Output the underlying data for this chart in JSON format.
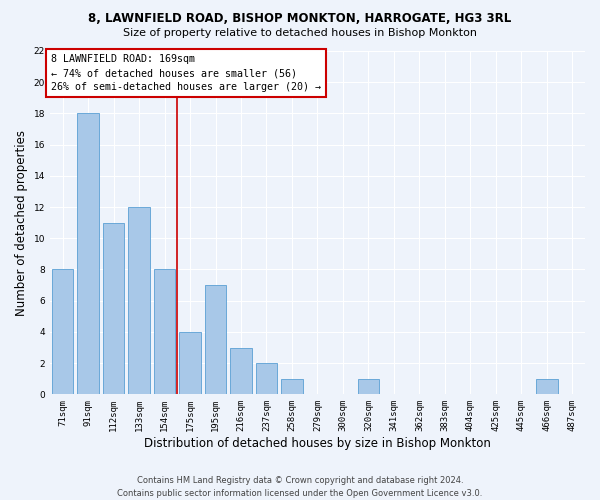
{
  "title1": "8, LAWNFIELD ROAD, BISHOP MONKTON, HARROGATE, HG3 3RL",
  "title2": "Size of property relative to detached houses in Bishop Monkton",
  "xlabel": "Distribution of detached houses by size in Bishop Monkton",
  "ylabel": "Number of detached properties",
  "footer1": "Contains HM Land Registry data © Crown copyright and database right 2024.",
  "footer2": "Contains public sector information licensed under the Open Government Licence v3.0.",
  "annotation_line1": "8 LAWNFIELD ROAD: 169sqm",
  "annotation_line2": "← 74% of detached houses are smaller (56)",
  "annotation_line3": "26% of semi-detached houses are larger (20) →",
  "bin_labels": [
    "71sqm",
    "91sqm",
    "112sqm",
    "133sqm",
    "154sqm",
    "175sqm",
    "195sqm",
    "216sqm",
    "237sqm",
    "258sqm",
    "279sqm",
    "300sqm",
    "320sqm",
    "341sqm",
    "362sqm",
    "383sqm",
    "404sqm",
    "425sqm",
    "445sqm",
    "466sqm",
    "487sqm"
  ],
  "bar_values": [
    8,
    18,
    11,
    12,
    8,
    4,
    7,
    3,
    2,
    1,
    0,
    0,
    1,
    0,
    0,
    0,
    0,
    0,
    0,
    1,
    0
  ],
  "bar_color": "#a8c8e8",
  "bar_edge_color": "#5a9fd4",
  "red_line_x": 4.5,
  "red_line_color": "#cc0000",
  "ylim": [
    0,
    22
  ],
  "yticks": [
    0,
    2,
    4,
    6,
    8,
    10,
    12,
    14,
    16,
    18,
    20,
    22
  ],
  "bg_color": "#eef3fb",
  "grid_color": "#ffffff",
  "annotation_box_color": "#ffffff",
  "annotation_box_edge": "#cc0000",
  "title1_fontsize": 8.5,
  "title2_fontsize": 8.0,
  "ylabel_fontsize": 8.5,
  "xlabel_fontsize": 8.5,
  "tick_fontsize": 6.5,
  "footer_fontsize": 6.0
}
